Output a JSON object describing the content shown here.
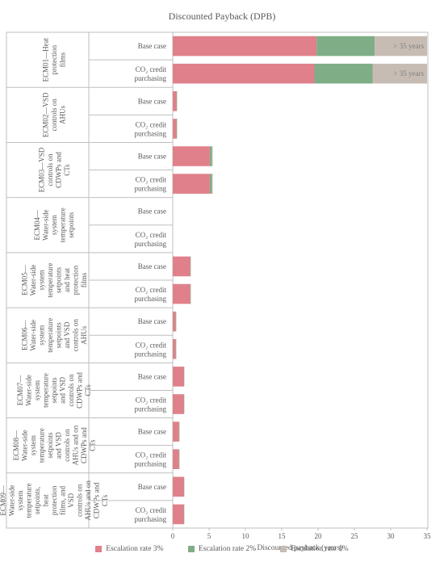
{
  "chart_data": {
    "type": "bar",
    "orientation": "horizontal",
    "stacked": true,
    "title": "Discounted Payback (DPB)",
    "xlabel": "Discounted payback (years)",
    "xlim": [
      0,
      35
    ],
    "xticks": [
      0,
      5,
      10,
      15,
      20,
      25,
      30,
      35
    ],
    "grid": false,
    "legend_position": "bottom",
    "series": [
      {
        "name": "Escalation rate 3%",
        "color": "#e0808a"
      },
      {
        "name": "Escalation rate 2%",
        "color": "#7fae86"
      },
      {
        "name": "Escalation rate 1%",
        "color": "#c7bcb4"
      }
    ],
    "groups": [
      {
        "label": "ECM01—Heat protection films",
        "bars": [
          {
            "label": "Base case",
            "values": [
              19.8,
              8.0,
              7.2
            ],
            "annotation": "> 35 years"
          },
          {
            "label": "CO₂ credit purchasing",
            "values": [
              19.5,
              8.0,
              7.5
            ],
            "annotation": "> 35 years"
          }
        ]
      },
      {
        "label": "ECM02—VSD controls on AHUs",
        "bars": [
          {
            "label": "Base case",
            "values": [
              0.5,
              0.05,
              0.05
            ]
          },
          {
            "label": "CO₂ credit purchasing",
            "values": [
              0.5,
              0.05,
              0.05
            ]
          }
        ]
      },
      {
        "label": "ECM03—VSD controls on CDWPs and CTs",
        "bars": [
          {
            "label": "Base case",
            "values": [
              5.1,
              0.3,
              0.1
            ]
          },
          {
            "label": "CO₂ credit purchasing",
            "values": [
              5.1,
              0.3,
              0.1
            ]
          }
        ]
      },
      {
        "label": "ECM04—Water-side system temperature setpoints",
        "bars": [
          {
            "label": "Base case",
            "values": [
              0,
              0,
              0
            ]
          },
          {
            "label": "CO₂ credit purchasing",
            "values": [
              0,
              0,
              0
            ]
          }
        ]
      },
      {
        "label": "ECM05—Water-side system temperature setpoints and heat protection films",
        "bars": [
          {
            "label": "Base case",
            "values": [
              2.4,
              0.05,
              0.05
            ]
          },
          {
            "label": "CO₂ credit purchasing",
            "values": [
              2.4,
              0.05,
              0.05
            ]
          }
        ]
      },
      {
        "label": "ECM06—Water-side system temperature setpoints and VSD controls on AHUs",
        "bars": [
          {
            "label": "Base case",
            "values": [
              0.4,
              0.05,
              0.05
            ]
          },
          {
            "label": "CO₂ credit purchasing",
            "values": [
              0.4,
              0.05,
              0.05
            ]
          }
        ]
      },
      {
        "label": "ECM07—Water-side system temperature setpoints and VSD controls on CDWPs and CTs",
        "bars": [
          {
            "label": "Base case",
            "values": [
              1.5,
              0.05,
              0.05
            ]
          },
          {
            "label": "CO₂ credit purchasing",
            "values": [
              1.5,
              0.05,
              0.05
            ]
          }
        ]
      },
      {
        "label": "ECM08—Water-side system temperature setpoints and VSD controls on AHUs and on CDWPs and CTs",
        "bars": [
          {
            "label": "Base case",
            "values": [
              0.85,
              0.05,
              0.05
            ]
          },
          {
            "label": "CO₂ credit purchasing",
            "values": [
              0.85,
              0.05,
              0.05
            ]
          }
        ]
      },
      {
        "label": "ECM09—Water-side system temperature setpoints, heat protection films, and VSD controls on AHUs and on CDWPs and CTs",
        "bars": [
          {
            "label": "Base case",
            "values": [
              1.5,
              0.05,
              0.05
            ]
          },
          {
            "label": "CO₂ credit purchasing",
            "values": [
              1.5,
              0.05,
              0.05
            ]
          }
        ]
      }
    ]
  }
}
